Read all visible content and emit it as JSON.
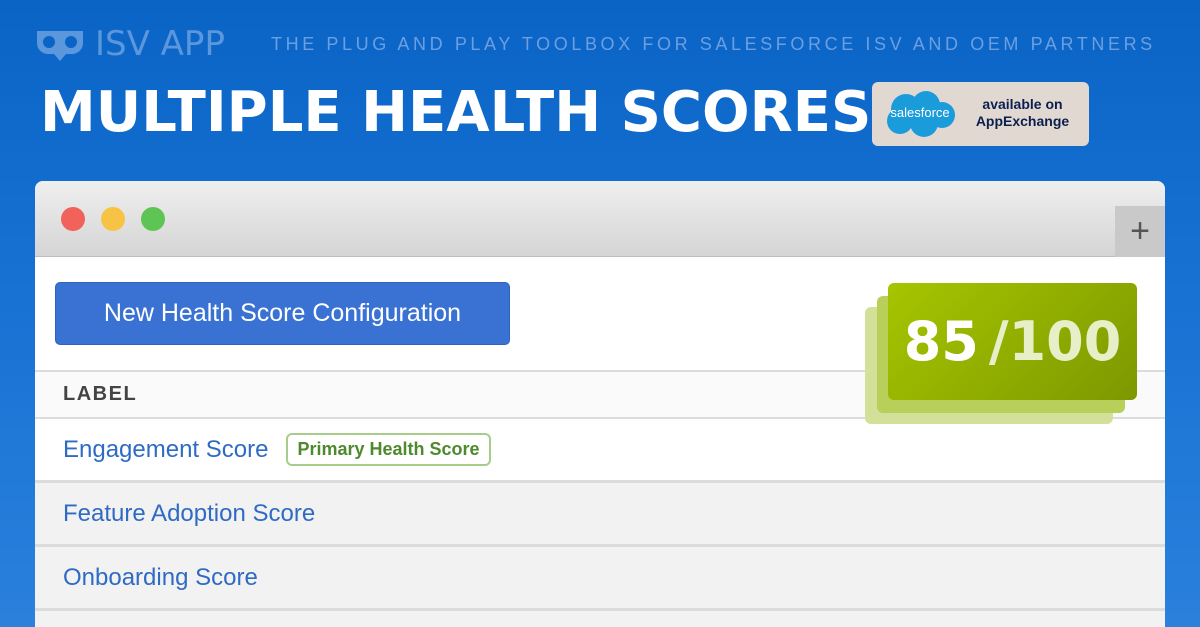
{
  "brand": {
    "name": "ISV APP",
    "logo_icon": "owl-eyes-icon",
    "tagline": "THE PLUG AND PLAY TOOLBOX FOR SALESFORCE ISV AND OEM PARTNERS"
  },
  "headline": "MULTIPLE HEALTH SCORES",
  "appexchange_badge": {
    "cloud_text": "salesforce",
    "line1": "available on",
    "line2": "AppExchange"
  },
  "window": {
    "controls": [
      "close",
      "minimize",
      "maximize"
    ],
    "new_tab_icon": "plus-icon",
    "new_button": "New Health Score Configuration",
    "table": {
      "header": "LABEL",
      "rows": [
        {
          "label": "Engagement Score",
          "badge": "Primary Health Score"
        },
        {
          "label": "Feature Adoption Score"
        },
        {
          "label": "Onboarding Score"
        }
      ]
    },
    "score": {
      "value": "85",
      "max": "/100"
    }
  },
  "colors": {
    "background": "#0a64c6",
    "button": "#3a72d4",
    "link": "#2f6bc4",
    "score_green": "#a7c500",
    "badge_green": "#4e8a2d"
  }
}
